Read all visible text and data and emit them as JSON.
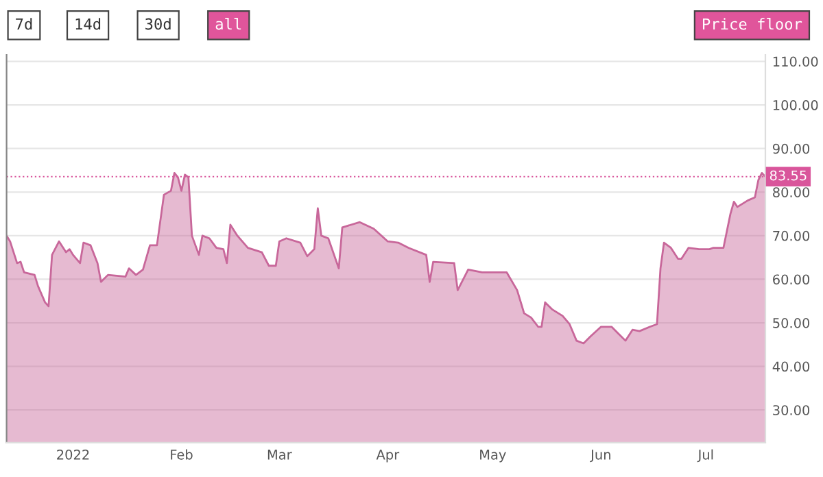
{
  "chart_data": {
    "type": "area",
    "annotations": [
      "7d",
      "14d",
      "30d",
      "all",
      "Price floor"
    ],
    "x": [
      "2021-12-13",
      "2021-12-14",
      "2021-12-16",
      "2021-12-17",
      "2021-12-18",
      "2021-12-21",
      "2021-12-22",
      "2021-12-24",
      "2021-12-25",
      "2021-12-26",
      "2021-12-28",
      "2021-12-30",
      "2021-12-31",
      "2022-01-01",
      "2022-01-03",
      "2022-01-04",
      "2022-01-06",
      "2022-01-08",
      "2022-01-09",
      "2022-01-11",
      "2022-01-16",
      "2022-01-17",
      "2022-01-19",
      "2022-01-21",
      "2022-01-23",
      "2022-01-25",
      "2022-01-27",
      "2022-01-29",
      "2022-01-30",
      "2022-01-31",
      "2022-02-01",
      "2022-02-02",
      "2022-02-03",
      "2022-02-04",
      "2022-02-06",
      "2022-02-07",
      "2022-02-09",
      "2022-02-11",
      "2022-02-13",
      "2022-02-14",
      "2022-02-15",
      "2022-02-17",
      "2022-02-20",
      "2022-02-24",
      "2022-02-26",
      "2022-02-28",
      "2022-03-01",
      "2022-03-03",
      "2022-03-07",
      "2022-03-09",
      "2022-03-11",
      "2022-03-12",
      "2022-03-13",
      "2022-03-15",
      "2022-03-18",
      "2022-03-19",
      "2022-03-24",
      "2022-03-28",
      "2022-04-01",
      "2022-04-04",
      "2022-04-07",
      "2022-04-12",
      "2022-04-13",
      "2022-04-14",
      "2022-04-20",
      "2022-04-21",
      "2022-04-24",
      "2022-04-28",
      "2022-05-05",
      "2022-05-08",
      "2022-05-10",
      "2022-05-12",
      "2022-05-14",
      "2022-05-15",
      "2022-05-16",
      "2022-05-18",
      "2022-05-21",
      "2022-05-23",
      "2022-05-25",
      "2022-05-27",
      "2022-05-29",
      "2022-06-01",
      "2022-06-04",
      "2022-06-06",
      "2022-06-08",
      "2022-06-10",
      "2022-06-12",
      "2022-06-15",
      "2022-06-17",
      "2022-06-18",
      "2022-06-19",
      "2022-06-21",
      "2022-06-23",
      "2022-06-24",
      "2022-06-26",
      "2022-06-29",
      "2022-07-02",
      "2022-07-03",
      "2022-07-06",
      "2022-07-08",
      "2022-07-09",
      "2022-07-10",
      "2022-07-13",
      "2022-07-15",
      "2022-07-16",
      "2022-07-17",
      "2022-07-18"
    ],
    "series": [
      {
        "color": "#c8679a",
        "values": [
          70,
          68.7,
          63.7,
          64,
          61.6,
          61,
          58.4,
          54.7,
          53.8,
          65.6,
          68.7,
          66.2,
          66.9,
          65.6,
          63.7,
          68.4,
          67.8,
          63.7,
          59.4,
          61,
          60.6,
          62.5,
          61,
          62.2,
          67.8,
          67.8,
          79.4,
          80.3,
          84.4,
          83.4,
          80.3,
          84,
          83.4,
          70,
          65.6,
          70,
          69.4,
          67.2,
          66.9,
          63.7,
          72.5,
          70,
          67.2,
          66.2,
          63.1,
          63.1,
          68.7,
          69.4,
          68.4,
          65.3,
          66.9,
          76.3,
          70,
          69.4,
          62.5,
          71.9,
          73.1,
          71.6,
          68.7,
          68.4,
          67.2,
          65.6,
          59.4,
          64,
          63.7,
          57.5,
          62.2,
          61.6,
          61.6,
          57.5,
          52.2,
          51.2,
          49.1,
          49.1,
          54.7,
          53.1,
          51.6,
          49.7,
          45.9,
          45.3,
          46.9,
          49.1,
          49.1,
          47.5,
          45.9,
          48.4,
          48.1,
          49.1,
          49.7,
          62.5,
          68.4,
          67.2,
          64.7,
          64.7,
          67.2,
          66.9,
          66.9,
          67.2,
          67.2,
          75,
          77.8,
          76.6,
          78.1,
          78.8,
          82.8,
          84.4,
          83.55
        ]
      }
    ],
    "xlim": [
      "2021-12-13",
      "2022-07-18"
    ],
    "xticks": [
      {
        "value": "2022-01-01",
        "label": "2022"
      },
      {
        "value": "2022-02-01",
        "label": "Feb"
      },
      {
        "value": "2022-03-01",
        "label": "Mar"
      },
      {
        "value": "2022-04-01",
        "label": "Apr"
      },
      {
        "value": "2022-05-01",
        "label": "May"
      },
      {
        "value": "2022-06-01",
        "label": "Jun"
      },
      {
        "value": "2022-07-01",
        "label": "Jul"
      }
    ],
    "ylim": [
      22.5,
      111.5
    ],
    "yticks": [
      {
        "value": 30,
        "label": "30.00"
      },
      {
        "value": 40,
        "label": "40.00"
      },
      {
        "value": 50,
        "label": "50.00"
      },
      {
        "value": 60,
        "label": "60.00"
      },
      {
        "value": 70,
        "label": "70.00"
      },
      {
        "value": 80,
        "label": "80.00"
      },
      {
        "value": 90,
        "label": "90.00"
      },
      {
        "value": 100,
        "label": "100.00"
      },
      {
        "value": 110,
        "label": "110.00"
      }
    ],
    "ref_lines": [
      {
        "axis": "y",
        "value": 83.55,
        "label": "83.55",
        "color": "#d9559b",
        "line_style": "dotted"
      }
    ],
    "grid": "y",
    "legend": false
  }
}
